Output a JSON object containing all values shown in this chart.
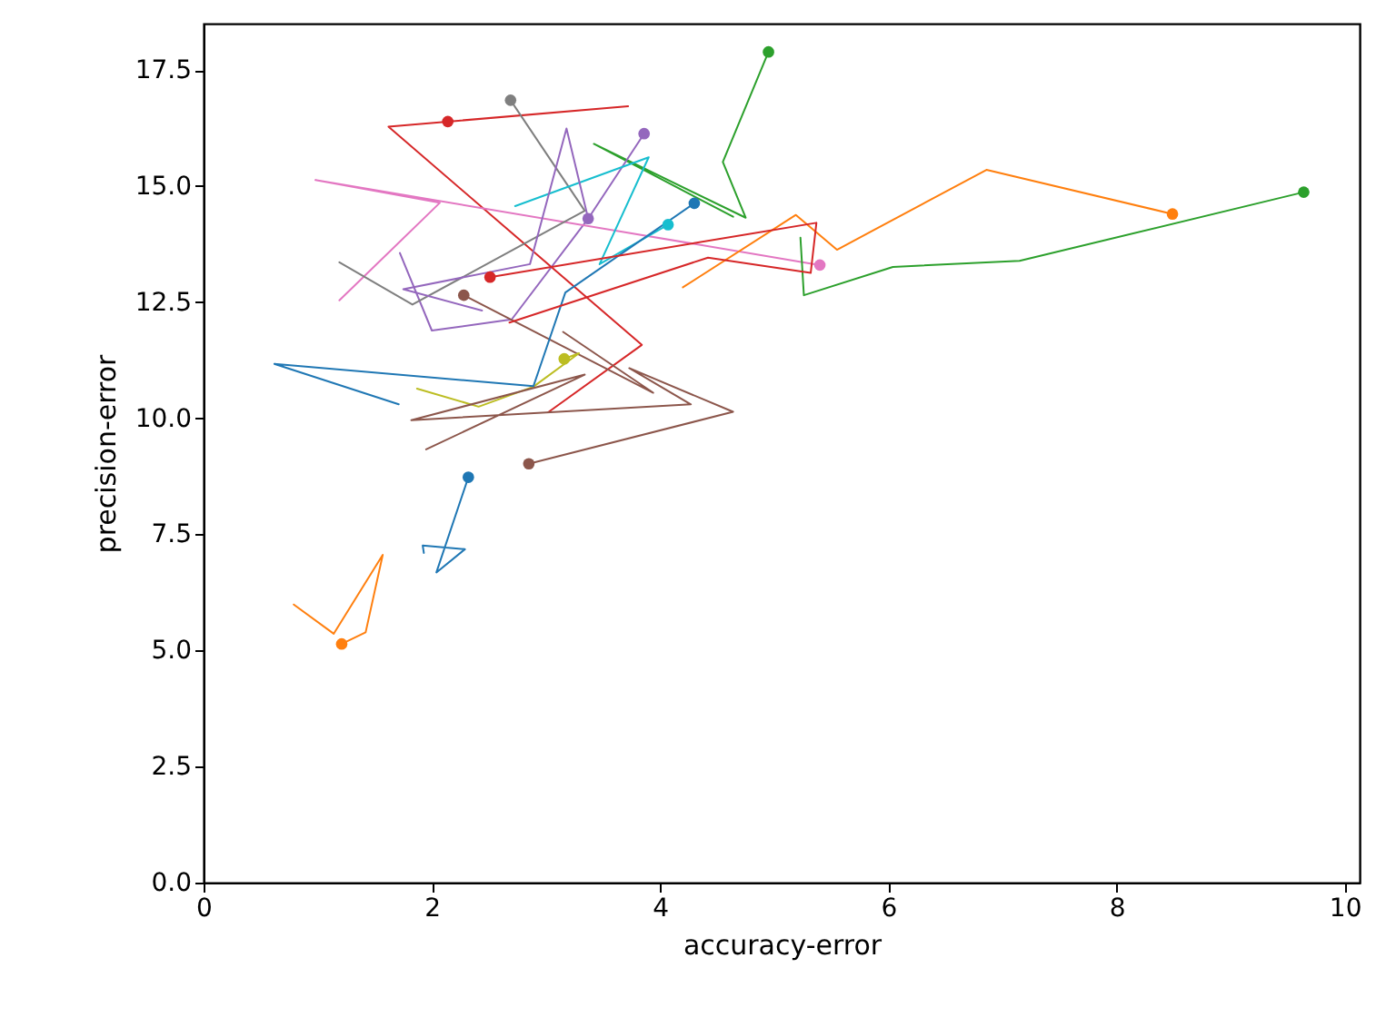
{
  "chart_data": {
    "type": "line",
    "xlabel": "accuracy-error",
    "ylabel": "precision-error",
    "xlim": [
      0,
      10.13
    ],
    "ylim": [
      0,
      18.5
    ],
    "xticks": [
      0,
      2,
      4,
      6,
      8,
      10
    ],
    "yticks": [
      {
        "value": 0,
        "label": "0.0"
      },
      2.5,
      {
        "value": 5,
        "label": "5.0"
      },
      7.5,
      {
        "value": 10,
        "label": "10.0"
      },
      12.5,
      {
        "value": 15,
        "label": "15.0"
      },
      17.5
    ],
    "grid": false,
    "line_style": "solid",
    "series": [
      {
        "color": "#1f77b4",
        "x": [
          2.32,
          2.04,
          2.29,
          1.92,
          1.93
        ],
        "values": [
          8.73,
          6.68,
          7.18,
          7.26,
          7.1
        ]
      },
      {
        "type": "scatter",
        "color": "#1f77b4",
        "x": [
          2.32
        ],
        "values": [
          8.73
        ]
      },
      {
        "color": "#ff7f0e",
        "x": [
          1.21,
          1.42,
          1.57,
          1.14,
          0.79
        ],
        "values": [
          5.14,
          5.39,
          7.06,
          5.36,
          5.99
        ]
      },
      {
        "type": "scatter",
        "color": "#ff7f0e",
        "x": [
          1.21
        ],
        "values": [
          5.14
        ]
      },
      {
        "color": "#2ca02c",
        "x": [
          4.95,
          4.55,
          4.75,
          3.42,
          4.64
        ],
        "values": [
          17.89,
          15.52,
          14.32,
          15.91,
          14.34
        ]
      },
      {
        "type": "scatter",
        "color": "#2ca02c",
        "x": [
          4.95
        ],
        "values": [
          17.89
        ]
      },
      {
        "color": "#d62728",
        "x": [
          2.14,
          3.72,
          1.62,
          3.84,
          3.02
        ],
        "values": [
          16.39,
          16.72,
          16.28,
          11.58,
          10.13
        ]
      },
      {
        "type": "scatter",
        "color": "#d62728",
        "x": [
          2.14
        ],
        "values": [
          16.39
        ]
      },
      {
        "color": "#9467bd",
        "x": [
          3.86,
          3.37,
          2.7,
          2.0,
          1.72
        ],
        "values": [
          16.13,
          14.3,
          12.13,
          11.89,
          13.56
        ]
      },
      {
        "type": "scatter",
        "color": "#9467bd",
        "x": [
          3.86
        ],
        "values": [
          16.13
        ]
      },
      {
        "color": "#8c564b",
        "x": [
          2.28,
          3.94,
          3.15
        ],
        "values": [
          12.65,
          10.55,
          11.86
        ]
      },
      {
        "type": "scatter",
        "color": "#8c564b",
        "x": [
          2.28
        ],
        "values": [
          12.65
        ]
      },
      {
        "color": "#e377c2",
        "x": [
          5.4,
          0.98,
          2.07,
          1.19
        ],
        "values": [
          13.3,
          15.13,
          14.64,
          12.54
        ]
      },
      {
        "type": "scatter",
        "color": "#e377c2",
        "x": [
          5.4
        ],
        "values": [
          13.3
        ]
      },
      {
        "color": "#7f7f7f",
        "x": [
          2.69,
          3.34,
          1.83,
          1.19
        ],
        "values": [
          16.85,
          14.47,
          12.45,
          13.36
        ]
      },
      {
        "type": "scatter",
        "color": "#7f7f7f",
        "x": [
          2.69
        ],
        "values": [
          16.85
        ]
      },
      {
        "color": "#bcbd22",
        "x": [
          3.16,
          3.29,
          2.89,
          2.41,
          1.87
        ],
        "values": [
          11.28,
          11.4,
          10.68,
          10.25,
          10.64
        ]
      },
      {
        "type": "scatter",
        "color": "#bcbd22",
        "x": [
          3.16
        ],
        "values": [
          11.28
        ]
      },
      {
        "color": "#17becf",
        "x": [
          4.07,
          3.47,
          3.9,
          2.73
        ],
        "values": [
          14.17,
          13.32,
          15.62,
          14.57
        ]
      },
      {
        "type": "scatter",
        "color": "#17becf",
        "x": [
          4.07
        ],
        "values": [
          14.17
        ]
      },
      {
        "color": "#1f77b4",
        "x": [
          4.3,
          3.17,
          2.94,
          2.89,
          0.62,
          1.71
        ],
        "values": [
          14.63,
          12.71,
          11.05,
          10.69,
          11.17,
          10.3
        ]
      },
      {
        "type": "scatter",
        "color": "#1f77b4",
        "x": [
          4.3
        ],
        "values": [
          14.63
        ]
      },
      {
        "color": "#ff7f0e",
        "x": [
          8.49,
          6.86,
          5.55,
          5.19,
          4.2
        ],
        "values": [
          14.4,
          15.35,
          13.63,
          14.38,
          12.82
        ]
      },
      {
        "type": "scatter",
        "color": "#ff7f0e",
        "x": [
          8.49
        ],
        "values": [
          14.4
        ]
      },
      {
        "color": "#2ca02c",
        "x": [
          9.64,
          7.15,
          6.04,
          5.26,
          5.23
        ],
        "values": [
          14.87,
          13.39,
          13.26,
          12.65,
          13.89
        ]
      },
      {
        "type": "scatter",
        "color": "#2ca02c",
        "x": [
          9.64
        ],
        "values": [
          14.87
        ]
      },
      {
        "color": "#d62728",
        "x": [
          2.51,
          5.37,
          5.32,
          4.42,
          2.68
        ],
        "values": [
          13.04,
          14.21,
          13.13,
          13.46,
          12.06
        ]
      },
      {
        "type": "scatter",
        "color": "#d62728",
        "x": [
          2.51
        ],
        "values": [
          13.04
        ]
      },
      {
        "color": "#9467bd",
        "x": [
          3.37,
          3.18,
          2.86,
          1.75,
          2.44
        ],
        "values": [
          14.3,
          16.24,
          13.32,
          12.78,
          12.32
        ]
      },
      {
        "type": "scatter",
        "color": "#9467bd",
        "x": [
          3.37
        ],
        "values": [
          14.3
        ]
      },
      {
        "color": "#8c564b",
        "x": [
          2.85,
          4.64,
          3.73,
          4.27,
          1.82,
          3.34,
          1.95
        ],
        "values": [
          9.02,
          10.14,
          11.08,
          10.3,
          9.96,
          10.94,
          9.33
        ]
      },
      {
        "type": "scatter",
        "color": "#8c564b",
        "x": [
          2.85
        ],
        "values": [
          9.02
        ]
      }
    ]
  }
}
